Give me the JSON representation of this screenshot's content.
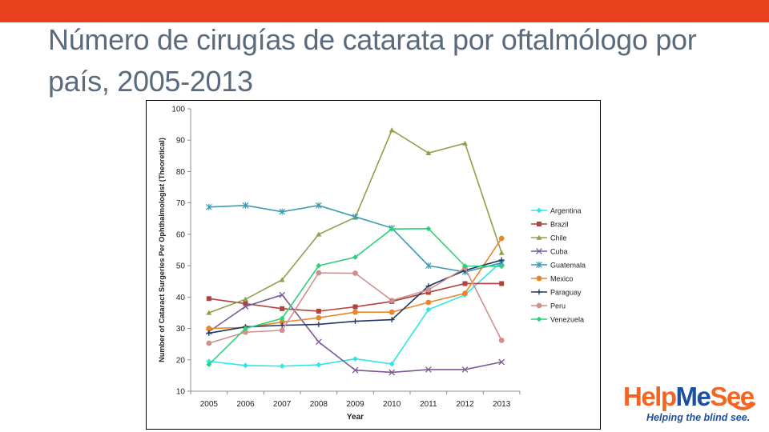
{
  "slide": {
    "title": "Número de cirugías de catarata por oftalmólogo por país, 2005-2013",
    "accent_color": "#e8401c",
    "title_color": "#5b6b7e"
  },
  "logo": {
    "word_part1": "Help",
    "word_part2": "Me",
    "word_part3": "See",
    "tagline": "Helping the blind see.",
    "orange": "#f26522",
    "blue": "#1d4fa0"
  },
  "chart_data": {
    "type": "line",
    "xlabel": "Year",
    "ylabel": "Number of Cataract Surgeries Per Ophthalmologist (Theoretical)",
    "x": [
      "2005",
      "2006",
      "2007",
      "2008",
      "2009",
      "2010",
      "2011",
      "2012",
      "2013"
    ],
    "ylim": [
      10,
      100
    ],
    "yticks": [
      10,
      20,
      30,
      40,
      50,
      60,
      70,
      80,
      90,
      100
    ],
    "grid": false,
    "legend_position": "right",
    "series": [
      {
        "name": "Argentina",
        "color": "#2ee6e6",
        "marker": "diamond",
        "values": [
          19.5,
          18.2,
          18.0,
          18.4,
          20.3,
          18.7,
          36.0,
          40.7,
          51.3
        ]
      },
      {
        "name": "Brazil",
        "color": "#b0413e",
        "marker": "square",
        "values": [
          39.5,
          37.9,
          36.3,
          35.5,
          36.9,
          38.6,
          41.5,
          44.3,
          44.3
        ]
      },
      {
        "name": "Chile",
        "color": "#8aa34a",
        "marker": "triangle",
        "values": [
          35.0,
          39.3,
          45.5,
          60.0,
          65.4,
          93.2,
          85.9,
          89.0,
          54.1
        ]
      },
      {
        "name": "Cuba",
        "color": "#7a5a96",
        "marker": "x",
        "values": [
          29.0,
          37.0,
          40.7,
          25.7,
          16.7,
          16.0,
          16.9,
          16.9,
          19.3
        ]
      },
      {
        "name": "Guatemala",
        "color": "#3d9bb1",
        "marker": "star",
        "values": [
          68.7,
          69.2,
          67.2,
          69.2,
          65.6,
          62.0,
          50.0,
          48.0,
          50.9
        ]
      },
      {
        "name": "Mexico",
        "color": "#e8862a",
        "marker": "circle",
        "values": [
          30.0,
          30.3,
          32.0,
          33.4,
          35.2,
          35.2,
          38.3,
          41.2,
          58.7
        ]
      },
      {
        "name": "Paraguay",
        "color": "#1f3864",
        "marker": "plus",
        "values": [
          28.5,
          30.5,
          31.0,
          31.3,
          32.3,
          32.8,
          43.5,
          48.5,
          51.8
        ]
      },
      {
        "name": "Peru",
        "color": "#d0908c",
        "marker": "circle",
        "values": [
          25.3,
          28.8,
          29.4,
          47.7,
          47.6,
          38.9,
          42.3,
          49.3,
          26.2
        ]
      },
      {
        "name": "Venezuela",
        "color": "#2fd07a",
        "marker": "diamond",
        "values": [
          18.5,
          30.0,
          33.2,
          50.0,
          52.7,
          61.7,
          61.8,
          49.9,
          49.8
        ]
      }
    ]
  }
}
